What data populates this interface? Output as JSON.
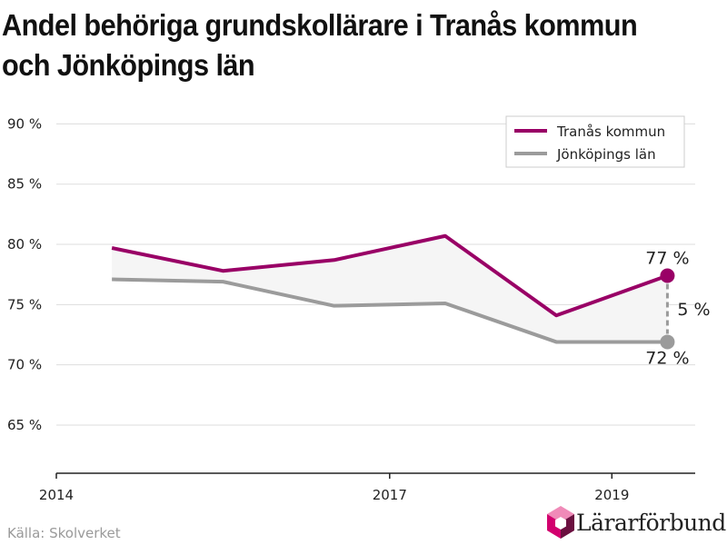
{
  "title": "Andel behöriga grundskollärare i Tranås kommun och Jönköpings län",
  "source": "Källa: Skolverket",
  "brand": "Lärarförbundet",
  "colors": {
    "tranas": "#990066",
    "lan": "#9b9b9b",
    "gap_fill": "#f5f5f5",
    "grid": "#dddddd",
    "logo_pink": "#d2006e",
    "logo_dark": "#6b1040",
    "logo_light": "#f08ab8"
  },
  "chart_data": {
    "type": "line",
    "x": [
      2014.5,
      2015.5,
      2016.5,
      2017.5,
      2018.5,
      2019.5
    ],
    "series": [
      {
        "name": "Tranås kommun",
        "values": [
          79.7,
          77.8,
          78.7,
          80.7,
          74.1,
          77.4
        ]
      },
      {
        "name": "Jönköpings län",
        "values": [
          77.1,
          76.9,
          74.9,
          75.1,
          71.9,
          71.9
        ]
      }
    ],
    "xlim": [
      2014,
      2019.75
    ],
    "ylim": [
      61,
      93.5
    ],
    "x_ticks": [
      2014,
      2017,
      2019
    ],
    "x_tick_labels": [
      "2014",
      "2017",
      "2019"
    ],
    "y_ticks": [
      65,
      70,
      75,
      80,
      85,
      90
    ],
    "y_tick_labels": [
      "65 %",
      "70 %",
      "75 %",
      "80 %",
      "85 %",
      "90 %"
    ],
    "annotations": {
      "tranas_end": "77 %",
      "lan_end": "72 %",
      "difference": "5 %"
    },
    "grid": true,
    "legend_position": "top-right"
  }
}
